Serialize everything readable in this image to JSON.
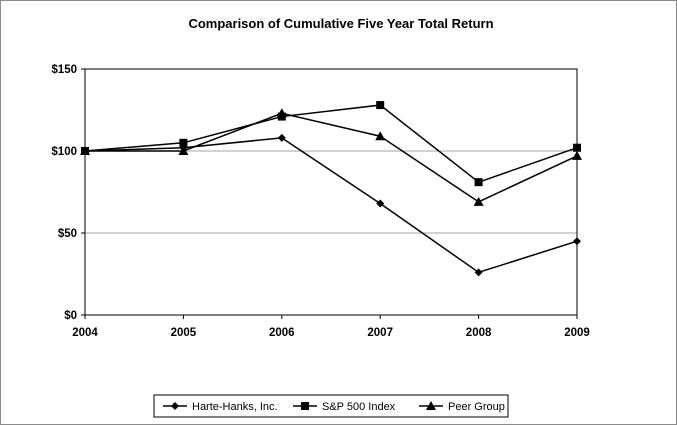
{
  "chart_data": {
    "type": "line",
    "title": "Comparison of Cumulative Five Year Total Return",
    "xlabel": "",
    "ylabel": "",
    "categories": [
      "2004",
      "2005",
      "2006",
      "2007",
      "2008",
      "2009"
    ],
    "y_ticks": [
      0,
      50,
      100,
      150
    ],
    "y_tick_labels": [
      "$0",
      "$50",
      "$100",
      "$150"
    ],
    "ylim": [
      0,
      150
    ],
    "grid": true,
    "legend_position": "bottom",
    "series": [
      {
        "name": "Harte-Hanks, Inc.",
        "marker": "diamond",
        "color": "#000000",
        "values": [
          100,
          102,
          108,
          68,
          26,
          45
        ]
      },
      {
        "name": "S&P 500 Index",
        "marker": "square",
        "color": "#000000",
        "values": [
          100,
          105,
          121,
          128,
          81,
          102
        ]
      },
      {
        "name": "Peer Group",
        "marker": "triangle",
        "color": "#000000",
        "values": [
          100,
          100,
          123,
          109,
          69,
          97
        ]
      }
    ]
  }
}
